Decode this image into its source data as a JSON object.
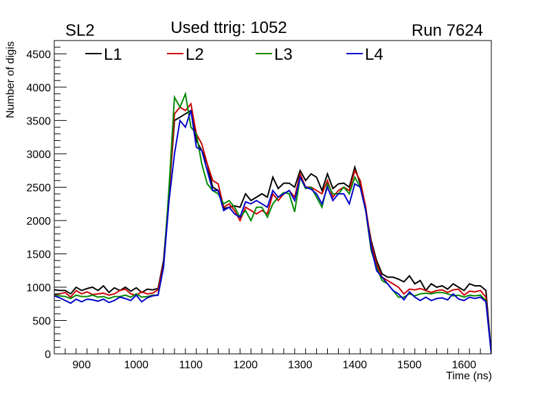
{
  "chart_data": {
    "type": "line",
    "title": "Used ttrig: 1052",
    "title_left": "SL2",
    "title_right": "Run 7624",
    "xlabel": "Time (ns)",
    "ylabel": "Number of digis",
    "xlim": [
      850,
      1650
    ],
    "ylim": [
      0,
      4700
    ],
    "x_ticks": [
      900,
      1000,
      1100,
      1200,
      1300,
      1400,
      1500,
      1600
    ],
    "y_ticks": [
      0,
      500,
      1000,
      1500,
      2000,
      2500,
      3000,
      3500,
      4000,
      4500
    ],
    "grid": false,
    "legend_position": "top",
    "x": [
      850,
      860,
      870,
      880,
      890,
      900,
      910,
      920,
      930,
      940,
      950,
      960,
      970,
      980,
      990,
      1000,
      1010,
      1020,
      1030,
      1040,
      1050,
      1060,
      1070,
      1080,
      1090,
      1100,
      1110,
      1120,
      1130,
      1140,
      1150,
      1160,
      1170,
      1180,
      1190,
      1200,
      1210,
      1220,
      1230,
      1240,
      1250,
      1260,
      1270,
      1280,
      1290,
      1300,
      1310,
      1320,
      1330,
      1340,
      1350,
      1360,
      1370,
      1380,
      1390,
      1400,
      1410,
      1420,
      1430,
      1440,
      1450,
      1460,
      1470,
      1480,
      1490,
      1500,
      1510,
      1520,
      1530,
      1540,
      1550,
      1560,
      1570,
      1580,
      1590,
      1600,
      1610,
      1620,
      1630,
      1640,
      1650
    ],
    "series": [
      {
        "name": "L1",
        "color": "#000000",
        "values": [
          960,
          950,
          950,
          900,
          1000,
          950,
          980,
          1000,
          950,
          1020,
          920,
          990,
          950,
          1000,
          940,
          990,
          920,
          970,
          960,
          980,
          1400,
          2400,
          3500,
          3550,
          3600,
          3650,
          3200,
          3050,
          2850,
          2500,
          2450,
          2180,
          2200,
          2220,
          2200,
          2400,
          2300,
          2350,
          2400,
          2350,
          2650,
          2480,
          2560,
          2560,
          2500,
          2750,
          2600,
          2700,
          2650,
          2450,
          2700,
          2480,
          2550,
          2560,
          2500,
          2800,
          2550,
          2150,
          1700,
          1400,
          1200,
          1150,
          1150,
          1120,
          1080,
          1170,
          1050,
          1100,
          950,
          1050,
          1000,
          1020,
          970,
          1050,
          1000,
          950,
          1050,
          1020,
          1020,
          950,
          0
        ]
      },
      {
        "name": "L2",
        "color": "#cc0000",
        "values": [
          890,
          900,
          920,
          850,
          950,
          900,
          930,
          890,
          900,
          910,
          880,
          900,
          950,
          970,
          900,
          880,
          930,
          900,
          910,
          960,
          1350,
          2400,
          3600,
          3700,
          3650,
          3750,
          3300,
          3150,
          2850,
          2600,
          2550,
          2200,
          2250,
          2150,
          2000,
          2200,
          2150,
          2100,
          2150,
          2100,
          2400,
          2300,
          2400,
          2450,
          2350,
          2700,
          2500,
          2500,
          2450,
          2400,
          2600,
          2350,
          2450,
          2500,
          2450,
          2750,
          2600,
          2200,
          1650,
          1350,
          1150,
          1100,
          1050,
          1000,
          900,
          970,
          960,
          980,
          950,
          920,
          950,
          960,
          920,
          960,
          970,
          880,
          940,
          930,
          950,
          850,
          0
        ]
      },
      {
        "name": "L3",
        "color": "#008800",
        "values": [
          880,
          870,
          860,
          830,
          880,
          860,
          860,
          880,
          850,
          860,
          830,
          860,
          860,
          880,
          850,
          900,
          850,
          860,
          880,
          880,
          1300,
          2500,
          3850,
          3700,
          3900,
          3400,
          3300,
          2850,
          2550,
          2450,
          2400,
          2250,
          2300,
          2200,
          2050,
          2150,
          2000,
          2200,
          2200,
          2050,
          2250,
          2350,
          2420,
          2400,
          2130,
          2650,
          2480,
          2500,
          2350,
          2200,
          2550,
          2400,
          2400,
          2500,
          2400,
          2650,
          2500,
          2150,
          1550,
          1300,
          1100,
          1050,
          950,
          850,
          850,
          900,
          870,
          900,
          910,
          900,
          920,
          920,
          900,
          870,
          880,
          850,
          880,
          870,
          880,
          800,
          0
        ]
      },
      {
        "name": "L4",
        "color": "#0000cc",
        "values": [
          870,
          840,
          800,
          760,
          820,
          780,
          820,
          810,
          790,
          820,
          770,
          800,
          850,
          830,
          800,
          880,
          780,
          840,
          870,
          880,
          1300,
          2300,
          3000,
          3500,
          3400,
          3650,
          3100,
          3050,
          2750,
          2450,
          2450,
          2150,
          2200,
          2100,
          2050,
          2280,
          2250,
          2300,
          2250,
          2200,
          2450,
          2350,
          2400,
          2450,
          2300,
          2650,
          2500,
          2470,
          2400,
          2250,
          2500,
          2300,
          2400,
          2400,
          2250,
          2550,
          2500,
          2150,
          1600,
          1250,
          1150,
          1050,
          950,
          900,
          810,
          930,
          850,
          800,
          850,
          800,
          830,
          840,
          810,
          900,
          820,
          800,
          850,
          830,
          850,
          780,
          0
        ]
      }
    ]
  }
}
